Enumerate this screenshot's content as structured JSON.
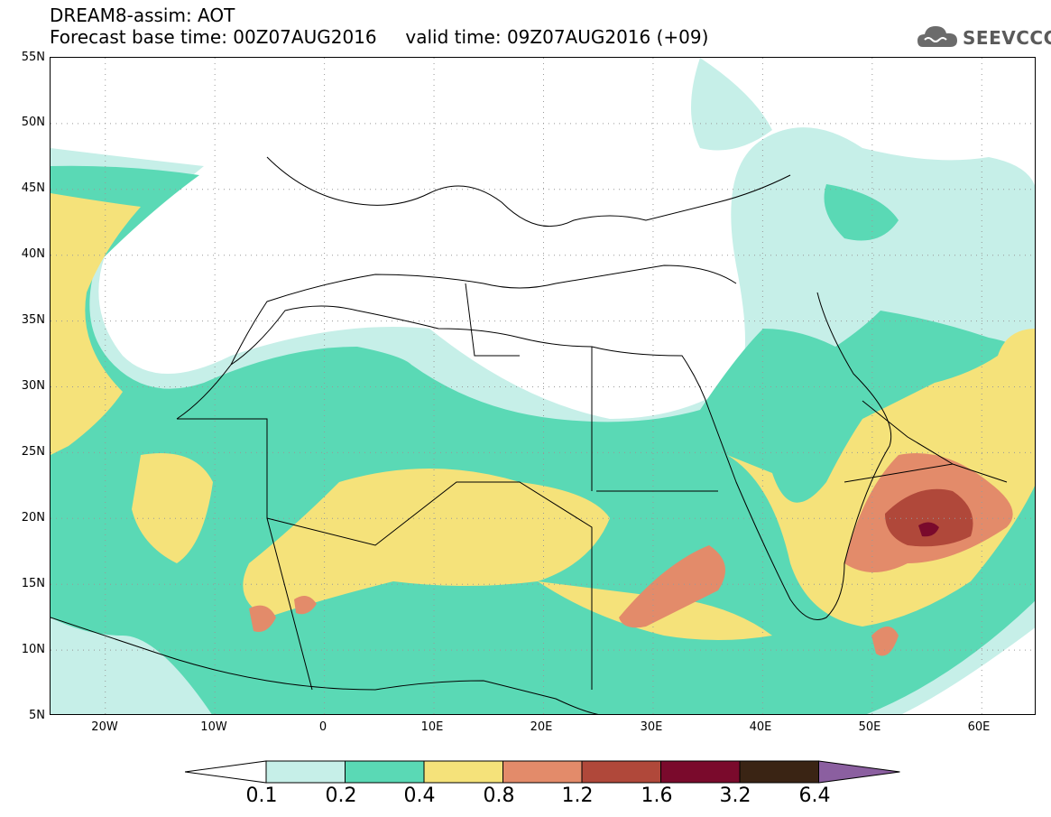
{
  "title": {
    "line1": "DREAM8-assim: AOT",
    "line2": "Forecast base time: 00Z07AUG2016     valid time: 09Z07AUG2016 (+09)"
  },
  "logo": {
    "text": "SEEVCCC",
    "icon": "cloud-icon"
  },
  "map": {
    "lon_range": [
      -25,
      65
    ],
    "lat_range": [
      5,
      55
    ],
    "lat_labels": [
      "55N",
      "50N",
      "45N",
      "40N",
      "35N",
      "30N",
      "25N",
      "20N",
      "15N",
      "10N",
      "5N"
    ],
    "lon_labels": [
      "20W",
      "10W",
      "0",
      "10E",
      "20E",
      "30E",
      "40E",
      "50E",
      "60E"
    ],
    "gridlines": "dotted"
  },
  "colorbar": {
    "levels": [
      "0.1",
      "0.2",
      "0.4",
      "0.8",
      "1.2",
      "1.6",
      "3.2",
      "6.4"
    ],
    "colors": [
      "#c6efe8",
      "#5ad9b5",
      "#f5e27a",
      "#e38b6a",
      "#b0483a",
      "#7a0a2c",
      "#3a2414",
      "#8b5fa0"
    ],
    "under_color": "#ffffff"
  }
}
